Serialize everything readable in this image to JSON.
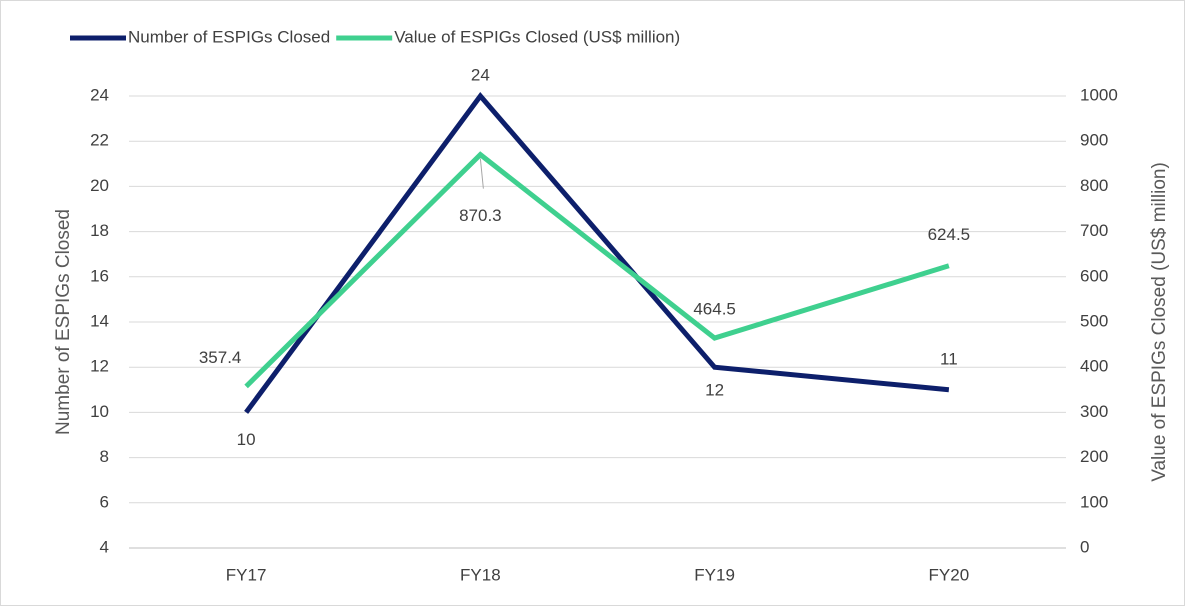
{
  "chart_data": {
    "type": "line",
    "categories": [
      "FY17",
      "FY18",
      "FY19",
      "FY20"
    ],
    "series": [
      {
        "name": "Number of ESPIGs Closed",
        "color": "#0d1f6b",
        "values": [
          10,
          24,
          12,
          11
        ]
      },
      {
        "name": "Value of ESPIGs Closed (US$ million)",
        "color": "#3fd08f",
        "values": [
          357.4,
          870.3,
          464.5,
          624.5
        ],
        "axis": "y2"
      }
    ],
    "ylabel": "Number of ESPIGs Closed",
    "y2label": "Value of ESPIGs Closed (US$ million)",
    "ylim": [
      4,
      24
    ],
    "yticks": [
      4,
      6,
      8,
      10,
      12,
      14,
      16,
      18,
      20,
      22,
      24
    ],
    "y2lim": [
      0,
      1000
    ],
    "y2ticks": [
      0,
      100,
      200,
      300,
      400,
      500,
      600,
      700,
      800,
      900,
      1000
    ],
    "grid": true,
    "legend": "top-left"
  }
}
